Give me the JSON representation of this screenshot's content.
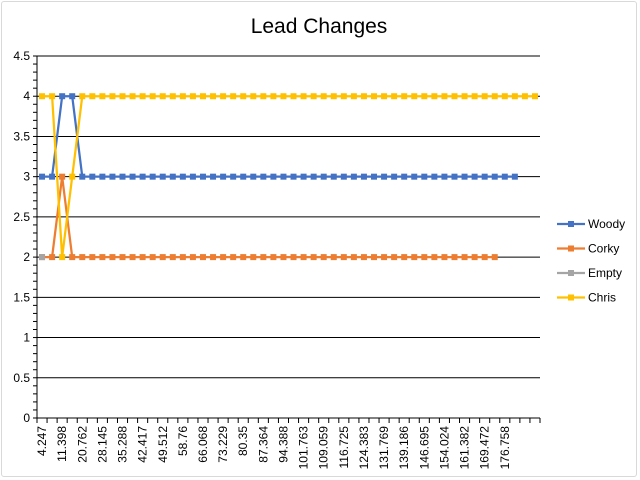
{
  "chart_data": {
    "type": "line",
    "title": "Lead Changes",
    "xlabel": "",
    "ylabel": "",
    "ylim": [
      0,
      4.5
    ],
    "y_ticks": [
      "0",
      "0.5",
      "1",
      "1.5",
      "2",
      "2.5",
      "3",
      "3.5",
      "4",
      "4.5"
    ],
    "x_tick_labels": [
      "4.247",
      "11.398",
      "20.762",
      "28.145",
      "35.288",
      "42.417",
      "49.512",
      "58.76",
      "66.068",
      "73.229",
      "80.35",
      "87.364",
      "94.388",
      "101.763",
      "109.059",
      "116.725",
      "124.383",
      "131.769",
      "139.186",
      "146.695",
      "154.024",
      "161.382",
      "169.472",
      "176.758"
    ],
    "category_count": 50,
    "grid": true,
    "legend_position": "right",
    "series": [
      {
        "name": "Woody",
        "color": "#4472C4",
        "values": [
          3,
          3,
          4,
          4,
          3,
          3,
          3,
          3,
          3,
          3,
          3,
          3,
          3,
          3,
          3,
          3,
          3,
          3,
          3,
          3,
          3,
          3,
          3,
          3,
          3,
          3,
          3,
          3,
          3,
          3,
          3,
          3,
          3,
          3,
          3,
          3,
          3,
          3,
          3,
          3,
          3,
          3,
          3,
          3,
          3,
          3,
          3,
          3
        ]
      },
      {
        "name": "Corky",
        "color": "#ED7D31",
        "values": [
          2,
          2,
          3,
          2,
          2,
          2,
          2,
          2,
          2,
          2,
          2,
          2,
          2,
          2,
          2,
          2,
          2,
          2,
          2,
          2,
          2,
          2,
          2,
          2,
          2,
          2,
          2,
          2,
          2,
          2,
          2,
          2,
          2,
          2,
          2,
          2,
          2,
          2,
          2,
          2,
          2,
          2,
          2,
          2,
          2,
          2
        ]
      },
      {
        "name": "Empty",
        "color": "#A5A5A5",
        "values": [
          2
        ]
      },
      {
        "name": "Chris",
        "color": "#FFC000",
        "values": [
          4,
          4,
          2,
          3,
          4,
          4,
          4,
          4,
          4,
          4,
          4,
          4,
          4,
          4,
          4,
          4,
          4,
          4,
          4,
          4,
          4,
          4,
          4,
          4,
          4,
          4,
          4,
          4,
          4,
          4,
          4,
          4,
          4,
          4,
          4,
          4,
          4,
          4,
          4,
          4,
          4,
          4,
          4,
          4,
          4,
          4,
          4,
          4,
          4,
          4
        ]
      }
    ]
  }
}
